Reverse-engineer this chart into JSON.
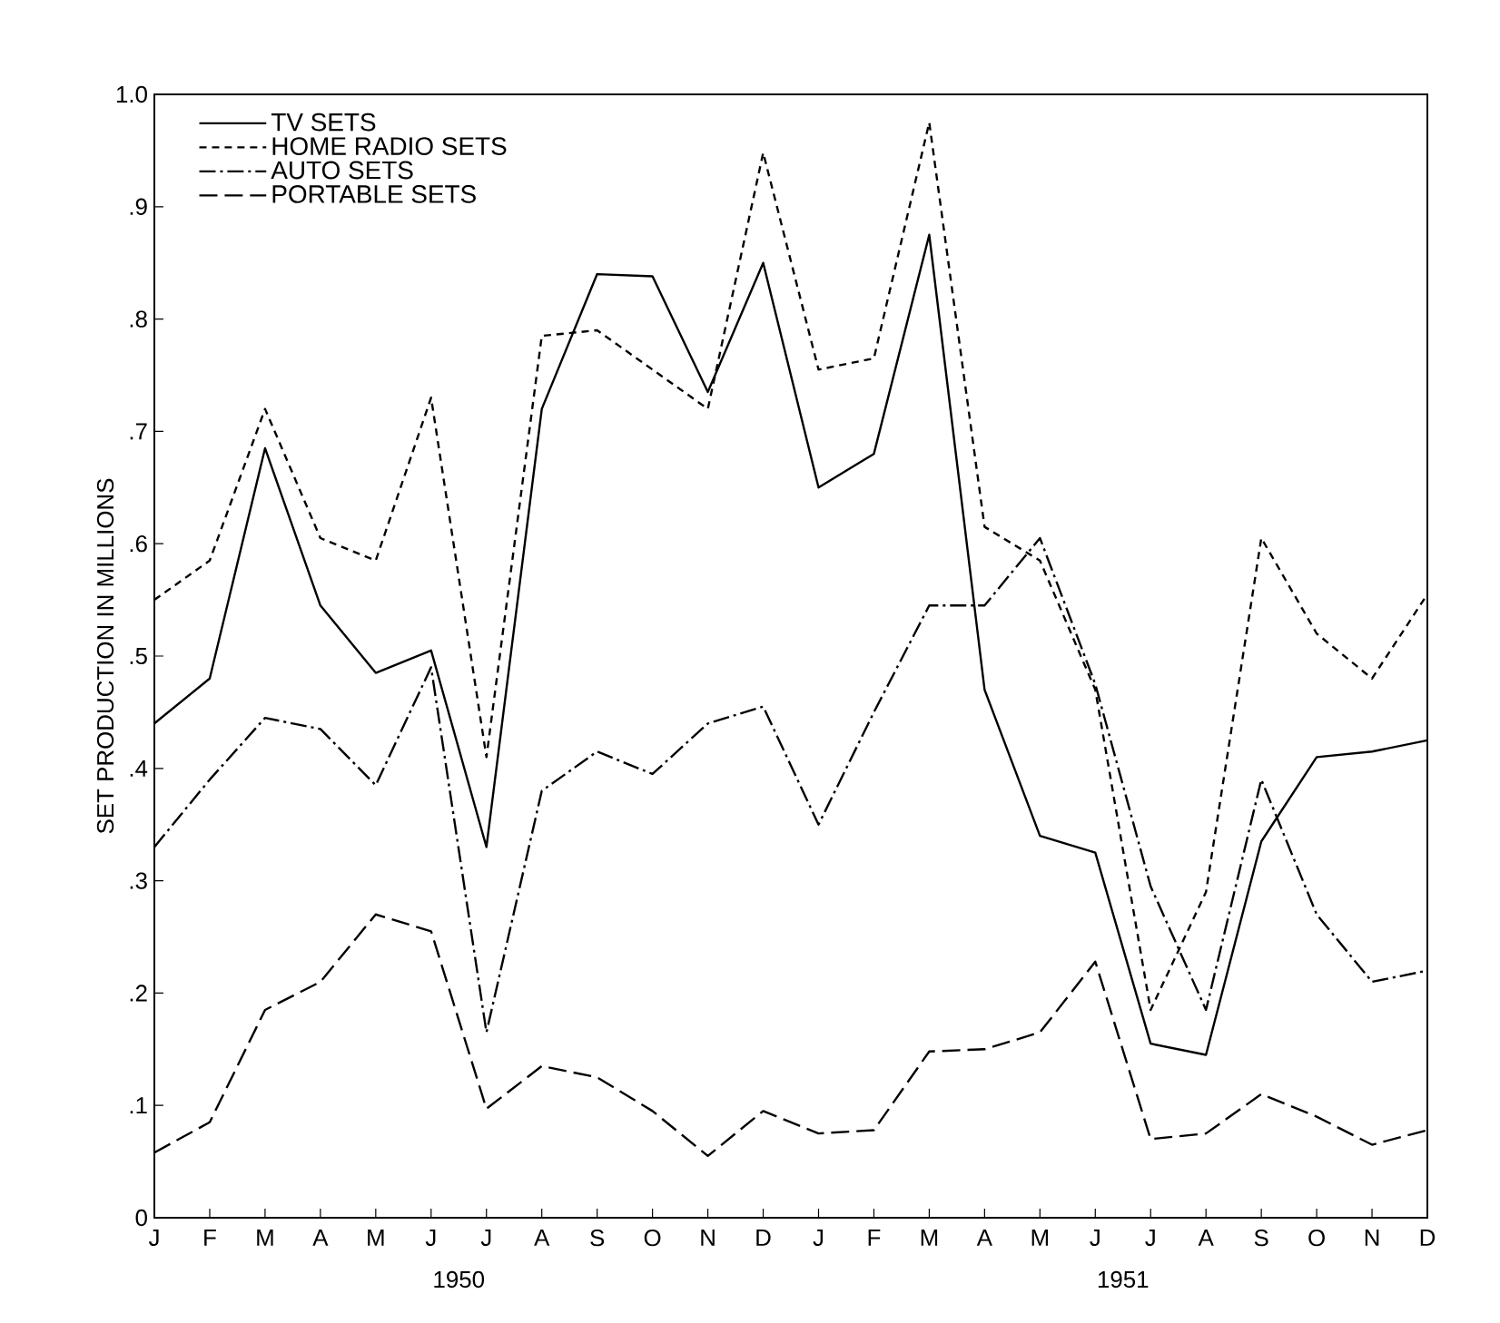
{
  "chart_data": {
    "type": "line",
    "ylabel": "SET PRODUCTION IN MILLIONS",
    "categories": [
      "J",
      "F",
      "M",
      "A",
      "M",
      "J",
      "J",
      "A",
      "S",
      "O",
      "N",
      "D",
      "J",
      "F",
      "M",
      "A",
      "M",
      "J",
      "J",
      "A",
      "S",
      "O",
      "N",
      "D"
    ],
    "series": [
      {
        "name": "TV SETS",
        "color": "#000000",
        "line_style": "solid",
        "values": [
          0.44,
          0.48,
          0.685,
          0.545,
          0.485,
          0.505,
          0.33,
          0.72,
          0.84,
          0.838,
          0.735,
          0.85,
          0.65,
          0.68,
          0.875,
          0.47,
          0.34,
          0.325,
          0.155,
          0.145,
          0.335,
          0.41,
          0.415,
          0.425
        ]
      },
      {
        "name": "HOME RADIO SETS",
        "color": "#000000",
        "line_style": "dashed",
        "values": [
          0.55,
          0.585,
          0.72,
          0.605,
          0.585,
          0.73,
          0.41,
          0.785,
          0.79,
          0.755,
          0.72,
          0.948,
          0.755,
          0.765,
          0.975,
          0.615,
          0.585,
          0.47,
          0.185,
          0.29,
          0.605,
          0.52,
          0.48,
          0.555
        ]
      },
      {
        "name": "AUTO SETS",
        "color": "#000000",
        "line_style": "dashdot",
        "values": [
          0.33,
          0.39,
          0.445,
          0.435,
          0.385,
          0.49,
          0.165,
          0.38,
          0.415,
          0.395,
          0.44,
          0.455,
          0.35,
          0.45,
          0.545,
          0.545,
          0.605,
          0.475,
          0.295,
          0.185,
          0.39,
          0.27,
          0.21,
          0.22
        ]
      },
      {
        "name": "PORTABLE SETS",
        "color": "#000000",
        "line_style": "longdash",
        "values": [
          0.058,
          0.085,
          0.185,
          0.21,
          0.27,
          0.255,
          0.097,
          0.135,
          0.125,
          0.095,
          0.055,
          0.095,
          0.075,
          0.078,
          0.148,
          0.15,
          0.165,
          0.228,
          0.07,
          0.075,
          0.11,
          0.09,
          0.065,
          0.078
        ]
      }
    ],
    "ylim": [
      0,
      1.0
    ],
    "yticks": [
      0,
      {
        "value": 0.1,
        "label": ".1"
      },
      {
        "value": 0.2,
        "label": ".2"
      },
      {
        "value": 0.3,
        "label": ".3"
      },
      {
        "value": 0.4,
        "label": ".4"
      },
      {
        "value": 0.5,
        "label": ".5"
      },
      {
        "value": 0.6,
        "label": ".6"
      },
      {
        "value": 0.7,
        "label": ".7"
      },
      {
        "value": 0.8,
        "label": ".8"
      },
      {
        "value": 0.9,
        "label": ".9"
      },
      {
        "value": 1.0,
        "label": "1.0"
      }
    ],
    "legend": "top left",
    "grid": false,
    "marker": "none",
    "annotations": [
      "1950",
      "1951"
    ]
  }
}
